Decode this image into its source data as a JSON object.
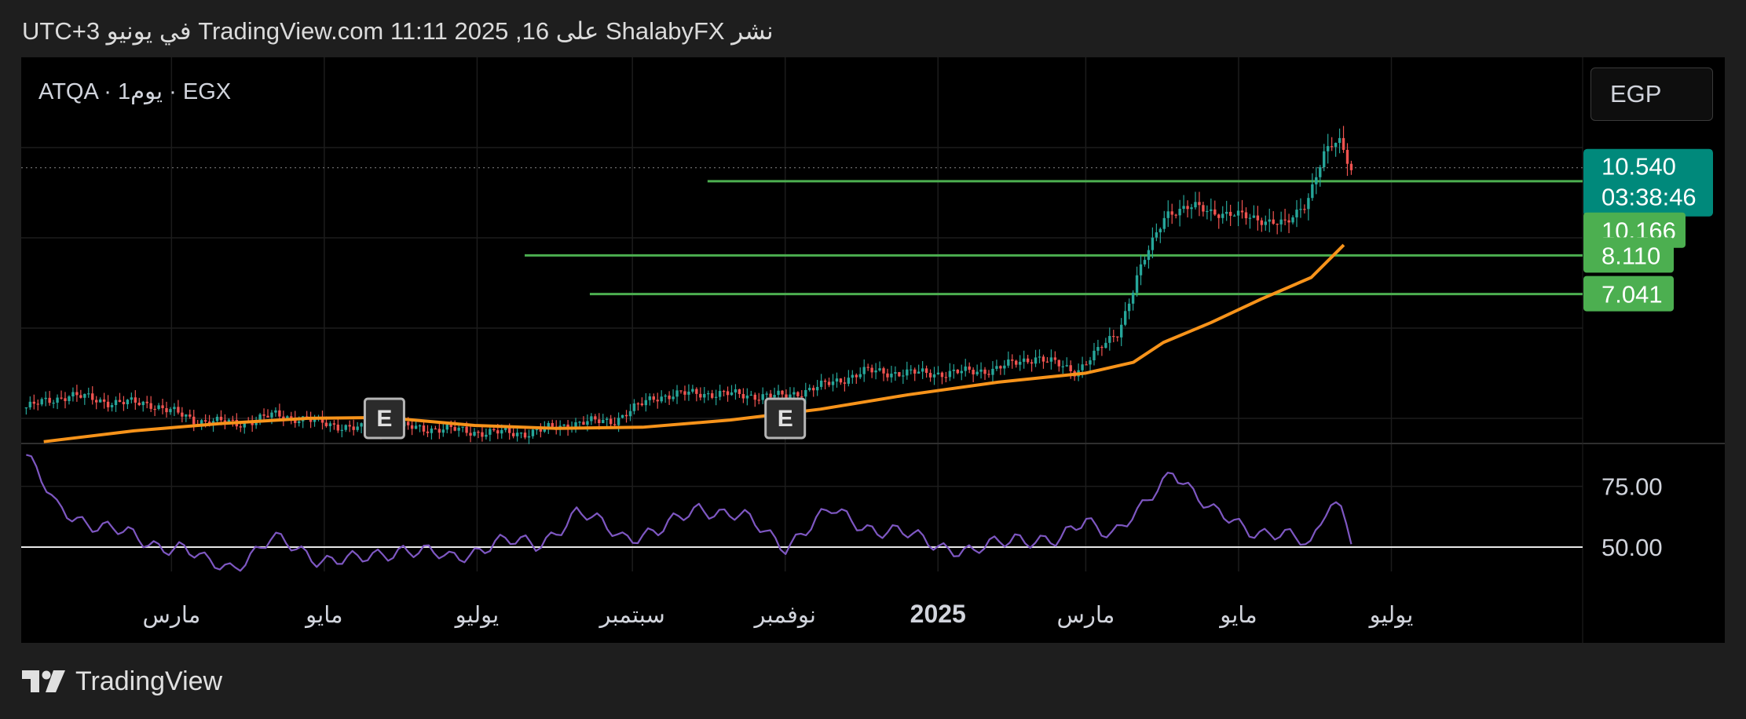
{
  "header": {
    "text": "نشر ShalabyFX على TradingView.com 11:11 2025 ,16 في يونيو UTC+3"
  },
  "symbol": {
    "text": "ATQA · 1يوم · EGX"
  },
  "currency": {
    "label": "EGP"
  },
  "footer": {
    "brand": "TradingView"
  },
  "colors": {
    "up": "#26a69a",
    "down": "#ef5350",
    "ma": "#f7931a",
    "level": "#4caf50",
    "rsi": "#7e57c2",
    "current_badge": "#00897b"
  },
  "chart_data": {
    "type": "line",
    "title": "",
    "price": {
      "x": [
        "2024-01-03",
        "2024-01-20",
        "2024-02-05",
        "2024-02-22",
        "2024-03-10",
        "2024-03-28",
        "2024-04-12",
        "2024-04-28",
        "2024-05-15",
        "2024-06-01",
        "2024-06-18",
        "2024-07-05",
        "2024-07-22",
        "2024-08-08",
        "2024-08-25",
        "2024-09-10",
        "2024-09-27",
        "2024-10-14",
        "2024-10-31",
        "2024-11-16",
        "2024-12-03",
        "2024-12-20",
        "2025-01-06",
        "2025-01-23",
        "2025-02-09",
        "2025-02-25",
        "2025-03-05",
        "2025-03-14",
        "2025-03-22",
        "2025-04-02",
        "2025-04-14",
        "2025-04-26",
        "2025-05-08",
        "2025-05-20",
        "2025-05-28",
        "2025-06-04",
        "2025-06-10",
        "2025-06-15"
      ],
      "values": [
        3.9,
        4.25,
        4.05,
        4.0,
        3.55,
        3.45,
        3.7,
        3.5,
        3.3,
        3.35,
        3.3,
        3.2,
        3.2,
        3.45,
        3.55,
        4.2,
        4.3,
        4.25,
        4.2,
        4.5,
        4.9,
        4.85,
        4.85,
        4.95,
        5.3,
        4.9,
        5.4,
        6.0,
        7.6,
        9.3,
        9.45,
        9.25,
        9.15,
        8.95,
        9.6,
        10.9,
        11.3,
        10.54
      ],
      "ylim": [
        2.9,
        13.6
      ]
    },
    "moving_average": {
      "x": [
        "2024-01-10",
        "2024-02-15",
        "2024-03-20",
        "2024-04-25",
        "2024-05-25",
        "2024-06-30",
        "2024-08-01",
        "2024-09-05",
        "2024-10-10",
        "2024-11-15",
        "2024-12-20",
        "2025-01-25",
        "2025-03-01",
        "2025-03-20",
        "2025-04-01",
        "2025-04-20",
        "2025-05-10",
        "2025-05-30",
        "2025-06-12"
      ],
      "values": [
        2.95,
        3.25,
        3.45,
        3.6,
        3.62,
        3.4,
        3.32,
        3.35,
        3.55,
        3.85,
        4.25,
        4.6,
        4.85,
        5.15,
        5.7,
        6.25,
        6.9,
        7.5,
        8.4
      ]
    },
    "levels": [
      {
        "value": 10.166,
        "label": "10.166",
        "from": "2024-10-01"
      },
      {
        "value": 8.11,
        "label": "8.110",
        "from": "2024-07-20"
      },
      {
        "value": 7.041,
        "label": "7.041",
        "from": "2024-08-15"
      }
    ],
    "current": {
      "value": 10.54,
      "label": "10.540",
      "countdown": "03:38:46"
    },
    "earnings_markers": [
      {
        "x": "2024-05-25",
        "label": "E"
      },
      {
        "x": "2024-11-01",
        "label": "E"
      }
    ],
    "rsi": {
      "x": [
        "2024-01-03",
        "2024-01-15",
        "2024-02-01",
        "2024-02-20",
        "2024-03-05",
        "2024-03-15",
        "2024-03-25",
        "2024-04-10",
        "2024-04-28",
        "2024-05-15",
        "2024-06-01",
        "2024-06-20",
        "2024-07-08",
        "2024-07-25",
        "2024-08-10",
        "2024-08-28",
        "2024-09-12",
        "2024-09-28",
        "2024-10-15",
        "2024-11-01",
        "2024-11-20",
        "2024-12-08",
        "2024-12-28",
        "2025-01-15",
        "2025-02-01",
        "2025-02-18",
        "2025-03-01",
        "2025-03-12",
        "2025-03-22",
        "2025-04-05",
        "2025-04-20",
        "2025-05-05",
        "2025-05-18",
        "2025-05-30",
        "2025-06-06",
        "2025-06-12",
        "2025-06-15"
      ],
      "values": [
        88,
        66,
        59,
        52,
        50,
        43,
        42,
        53,
        46,
        44,
        50,
        45,
        52,
        51,
        64,
        55,
        56,
        67,
        62,
        51,
        65,
        57,
        53,
        47,
        55,
        51,
        62,
        56,
        63,
        83,
        64,
        58,
        55,
        50,
        70,
        66,
        54
      ],
      "ylim": [
        40,
        92
      ]
    },
    "rsi_ticks": [
      {
        "value": 75,
        "label": "75.00"
      },
      {
        "value": 50,
        "label": "50.00"
      }
    ],
    "x_ticks": [
      {
        "x": "2024-03-01",
        "label": "مارس",
        "bold": false
      },
      {
        "x": "2024-05-01",
        "label": "مايو",
        "bold": false
      },
      {
        "x": "2024-07-01",
        "label": "يوليو",
        "bold": false
      },
      {
        "x": "2024-09-01",
        "label": "سبتمبر",
        "bold": false
      },
      {
        "x": "2024-11-01",
        "label": "نوفمبر",
        "bold": false
      },
      {
        "x": "2025-01-01",
        "label": "2025",
        "bold": true
      },
      {
        "x": "2025-03-01",
        "label": "مارس",
        "bold": false
      },
      {
        "x": "2025-05-01",
        "label": "مايو",
        "bold": false
      },
      {
        "x": "2025-07-01",
        "label": "يوليو",
        "bold": false
      }
    ],
    "x_range": [
      "2024-01-01",
      "2025-08-15"
    ],
    "grid": true
  }
}
